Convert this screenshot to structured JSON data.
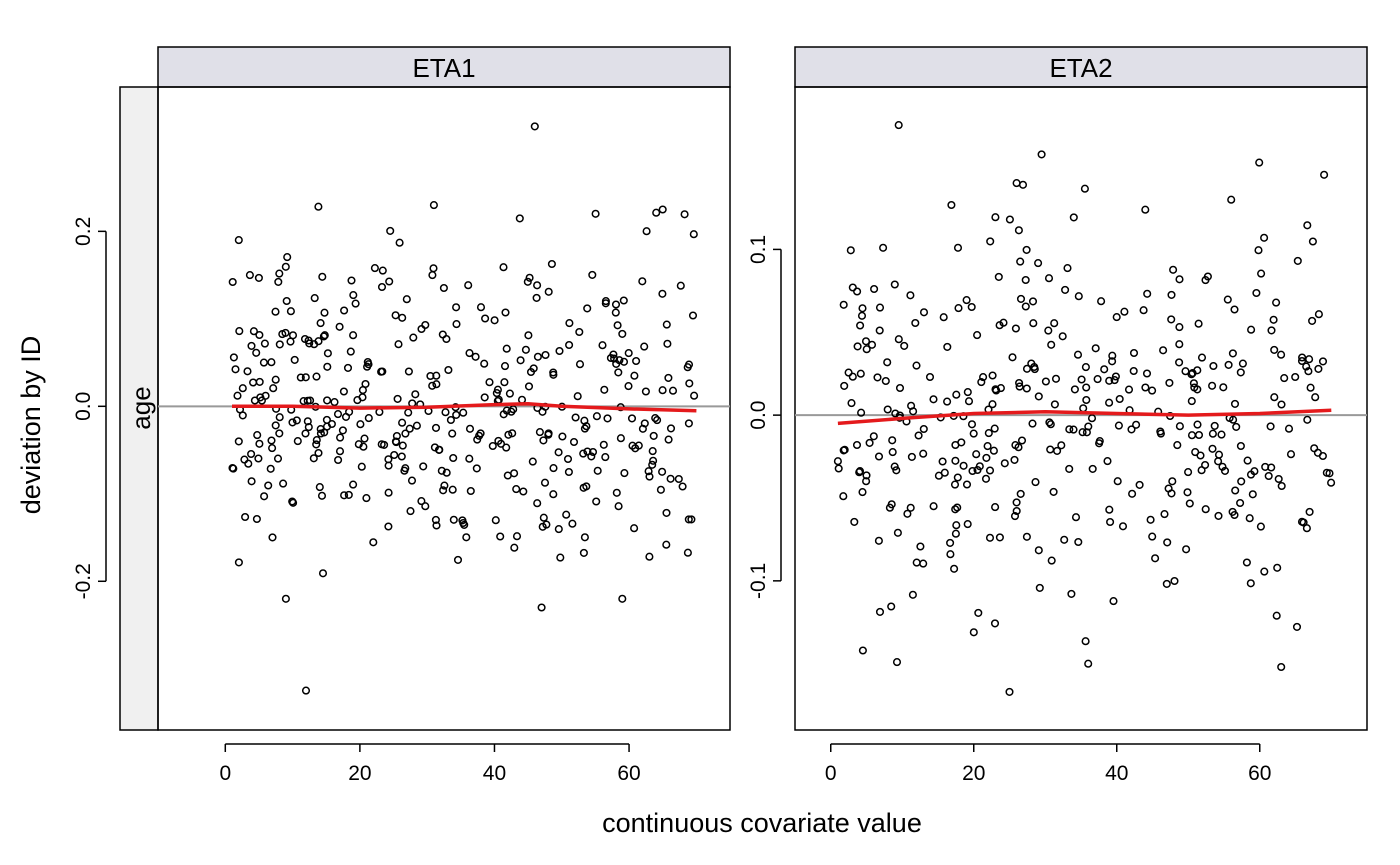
{
  "chart_data": {
    "type": "scatter",
    "xlabel": "continuous covariate value",
    "ylabel": "deviation by ID",
    "row_strip": "age",
    "panels": [
      {
        "title": "ETA1",
        "xlim": [
          -10,
          75
        ],
        "ylim": [
          -0.37,
          0.365
        ],
        "xticks": [
          0,
          20,
          40,
          60
        ],
        "xtick_labels": [
          "0",
          "20",
          "40",
          "60"
        ],
        "yticks": [
          -0.2,
          0.0,
          0.2
        ],
        "ytick_labels": [
          "-0.2",
          "0.0",
          "0.2"
        ],
        "reference_line_y": 0.0,
        "smooth": {
          "x": [
            1,
            10,
            20,
            30,
            40,
            45,
            50,
            60,
            70
          ],
          "y": [
            0.0,
            0.0,
            -0.002,
            -0.001,
            0.002,
            0.003,
            0.0,
            -0.003,
            -0.005
          ]
        },
        "points": {
          "n": 420,
          "mean": 0.0,
          "sd": 0.085,
          "x_min": 1,
          "x_max": 70,
          "extremes": [
            [
              12,
              -0.325
            ],
            [
              46,
              0.32
            ],
            [
              31,
              0.23
            ],
            [
              2,
              0.19
            ],
            [
              9,
              -0.22
            ],
            [
              47,
              -0.23
            ],
            [
              59,
              -0.22
            ],
            [
              65,
              0.225
            ]
          ]
        }
      },
      {
        "title": "ETA2",
        "xlim": [
          -5,
          75
        ],
        "ylim": [
          -0.19,
          0.198
        ],
        "xticks": [
          0,
          20,
          40,
          60
        ],
        "xtick_labels": [
          "0",
          "20",
          "40",
          "60"
        ],
        "yticks": [
          -0.1,
          0.0,
          0.1
        ],
        "ytick_labels": [
          "-0.1",
          "0.0",
          "0.1"
        ],
        "reference_line_y": 0.0,
        "smooth": {
          "x": [
            1,
            10,
            20,
            30,
            40,
            50,
            60,
            70
          ],
          "y": [
            -0.005,
            -0.002,
            0.001,
            0.002,
            0.001,
            0.0,
            0.001,
            0.003
          ]
        },
        "points": {
          "n": 400,
          "mean": 0.0,
          "sd": 0.06,
          "x_min": 1,
          "x_max": 70,
          "extremes": [
            [
              9.5,
              0.175
            ],
            [
              25,
              -0.167
            ],
            [
              63,
              -0.152
            ],
            [
              69,
              0.145
            ],
            [
              4.5,
              -0.142
            ],
            [
              26,
              0.14
            ],
            [
              36,
              -0.15
            ],
            [
              56,
              0.13
            ]
          ]
        }
      }
    ]
  }
}
